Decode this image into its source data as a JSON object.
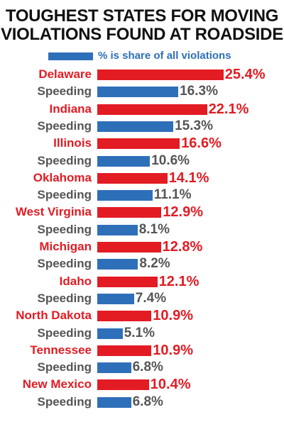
{
  "chart_data": {
    "type": "bar",
    "orientation": "horizontal",
    "title": [
      "TOUGHEST STATES FOR MOVING",
      "VIOLATIONS FOUND AT ROADSIDE"
    ],
    "legend": {
      "label": "% is share of all violations",
      "position": "top"
    },
    "grid": false,
    "xlim": [
      0,
      30
    ],
    "colors": {
      "state": "#e31b23",
      "speeding": "#2e6fba",
      "state_text": "#e31b23",
      "speeding_text": "#555555",
      "title_text": "#111111"
    },
    "categories": [
      "Delaware",
      "Speeding",
      "Indiana",
      "Speeding",
      "Illinois",
      "Speeding",
      "Oklahoma",
      "Speeding",
      "West Virginia",
      "Speeding",
      "Michigan",
      "Speeding",
      "Idaho",
      "Speeding",
      "North Dakota",
      "Speeding",
      "Tennessee",
      "Speeding",
      "New Mexico",
      "Speeding"
    ],
    "values": [
      25.4,
      16.3,
      22.1,
      15.3,
      16.6,
      10.6,
      14.1,
      11.1,
      12.9,
      8.1,
      12.8,
      8.2,
      12.1,
      7.4,
      10.9,
      5.1,
      10.9,
      6.8,
      10.4,
      6.8
    ],
    "value_labels": [
      "25.4%",
      "16.3%",
      "22.1%",
      "15.3%",
      "16.6%",
      "10.6%",
      "14.1%",
      "11.1%",
      "12.9%",
      "8.1%",
      "12.8%",
      "8.2%",
      "12.1%",
      "7.4%",
      "10.9%",
      "5.1%",
      "10.9%",
      "6.8%",
      "10.4%",
      "6.8%"
    ],
    "kinds": [
      "state",
      "speeding",
      "state",
      "speeding",
      "state",
      "speeding",
      "state",
      "speeding",
      "state",
      "speeding",
      "state",
      "speeding",
      "state",
      "speeding",
      "state",
      "speeding",
      "state",
      "speeding",
      "state",
      "speeding"
    ]
  }
}
